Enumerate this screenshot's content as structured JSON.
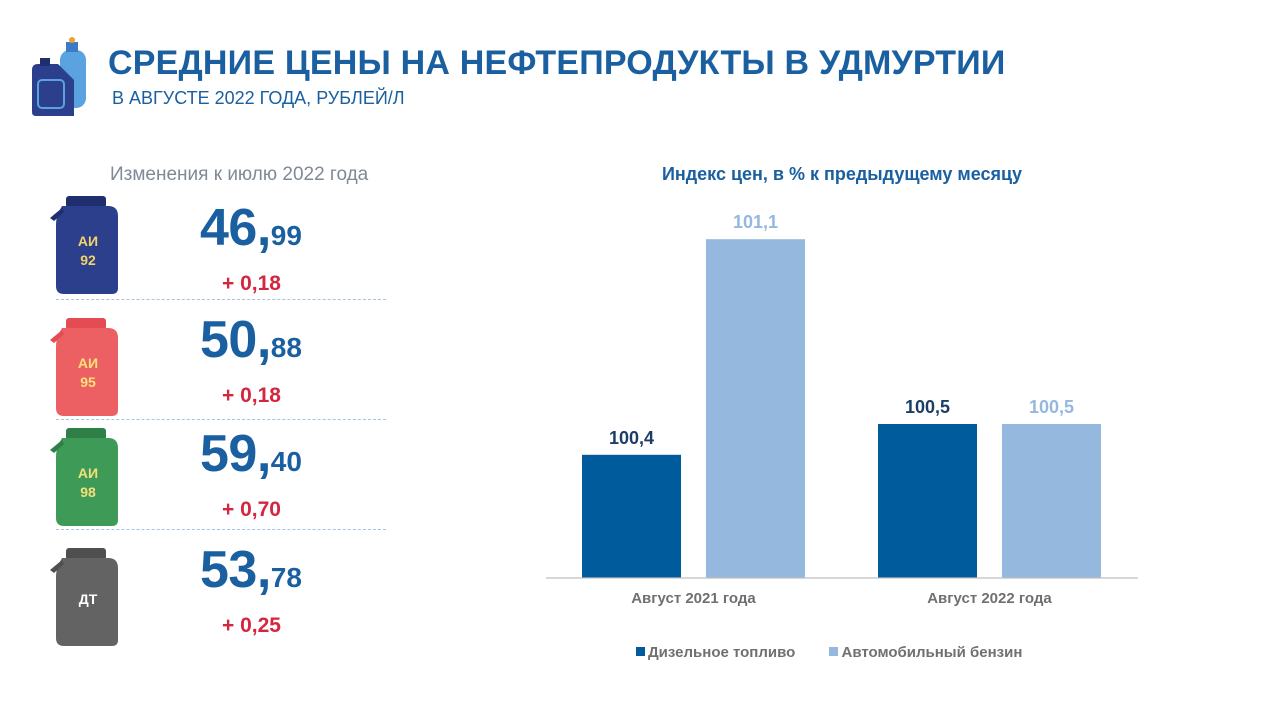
{
  "header": {
    "title": "СРЕДНИЕ ЦЕНЫ НА НЕФТЕПРОДУКТЫ В УДМУРТИИ",
    "subtitle": "В АВГУСТЕ  2022 ГОДА,  РУБЛЕЙ/Л",
    "logo_icon": "fuel-canister-gas-cylinder-icon"
  },
  "changes_title": "Изменения  к июлю  2022 года",
  "fuels": [
    {
      "label_line1": "АИ",
      "label_line2": "92",
      "price_int": "46,",
      "price_frac": "99",
      "delta": "+ 0,18",
      "can_color": "#2b3f8c",
      "label_color": "#f3d36a"
    },
    {
      "label_line1": "АИ",
      "label_line2": "95",
      "price_int": "50,",
      "price_frac": "88",
      "delta": "+ 0,18",
      "can_color": "#ec5f63",
      "label_color": "#fbe27a"
    },
    {
      "label_line1": "АИ",
      "label_line2": "98",
      "price_int": "59,",
      "price_frac": "40",
      "delta": "+ 0,70",
      "can_color": "#3e9a57",
      "label_color": "#f3e07a"
    },
    {
      "label_line1": "ДТ",
      "label_line2": "",
      "price_int": "53,",
      "price_frac": "78",
      "delta": "+ 0,25",
      "can_color": "#636363",
      "label_color": "#ffffff"
    }
  ],
  "chart_data": {
    "type": "bar",
    "title": "Индекс цен, в % к предыдущему  месяцу",
    "categories": [
      "Август 2021 года",
      "Август 2022 года"
    ],
    "series": [
      {
        "name": "Дизельное топливо",
        "values": [
          100.4,
          100.5
        ],
        "labels": [
          "100,4",
          "100,5"
        ],
        "color": "#005b9c"
      },
      {
        "name": "Автомобильный бензин",
        "values": [
          101.1,
          100.5
        ],
        "labels": [
          "101,1",
          "100,5"
        ],
        "color": "#95b9de"
      }
    ],
    "legend": "bottom",
    "grid": false
  },
  "colors": {
    "title": "#1a5fa0",
    "delta": "#d5263f",
    "muted_text": "#7f8a96"
  }
}
